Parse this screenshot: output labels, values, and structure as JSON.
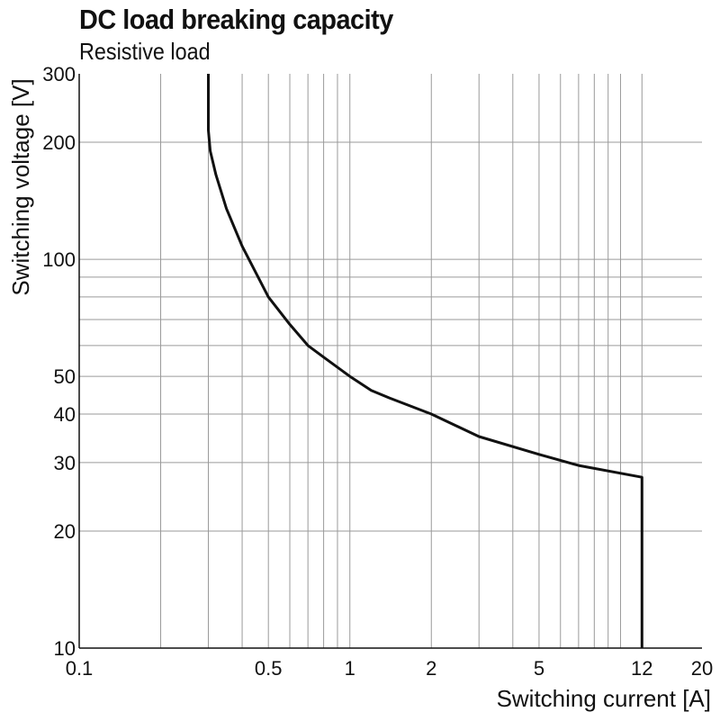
{
  "chart_data": {
    "type": "line",
    "title": "DC load breaking capacity",
    "subtitle": "Resistive load",
    "xlabel": "Switching current [A]",
    "ylabel": "Switching voltage [V]",
    "x_scale": "log",
    "y_scale": "log",
    "xlim": [
      0.1,
      20
    ],
    "ylim": [
      10,
      300
    ],
    "x_ticks": [
      0.1,
      0.5,
      1,
      2,
      5,
      12,
      20
    ],
    "x_tick_labels": [
      "0.1",
      "0.5",
      "1",
      "2",
      "5",
      "12",
      "20"
    ],
    "y_ticks": [
      10,
      20,
      30,
      40,
      50,
      100,
      200,
      300
    ],
    "y_tick_labels": [
      "10",
      "20",
      "30",
      "40",
      "50",
      "100",
      "200",
      "300"
    ],
    "x_gridlines": [
      0.2,
      0.3,
      0.4,
      0.5,
      0.6,
      0.7,
      0.8,
      0.9,
      1,
      2,
      3,
      4,
      5,
      6,
      7,
      8,
      9,
      10,
      12
    ],
    "y_gridlines": [
      20,
      30,
      40,
      50,
      60,
      70,
      80,
      90,
      100,
      200
    ],
    "grid": true,
    "series": [
      {
        "name": "",
        "color": "#111111",
        "x": [
          0.3,
          0.3,
          0.305,
          0.32,
          0.35,
          0.4,
          0.5,
          0.6,
          0.7,
          0.8,
          1.0,
          1.2,
          1.4,
          2.0,
          3.0,
          5.0,
          7.0,
          12.0,
          12.0
        ],
        "y": [
          300,
          215,
          190,
          165,
          135,
          108,
          80,
          68,
          60,
          56,
          50,
          46,
          44,
          40,
          35,
          31.5,
          29.5,
          27.5,
          10
        ]
      }
    ]
  }
}
